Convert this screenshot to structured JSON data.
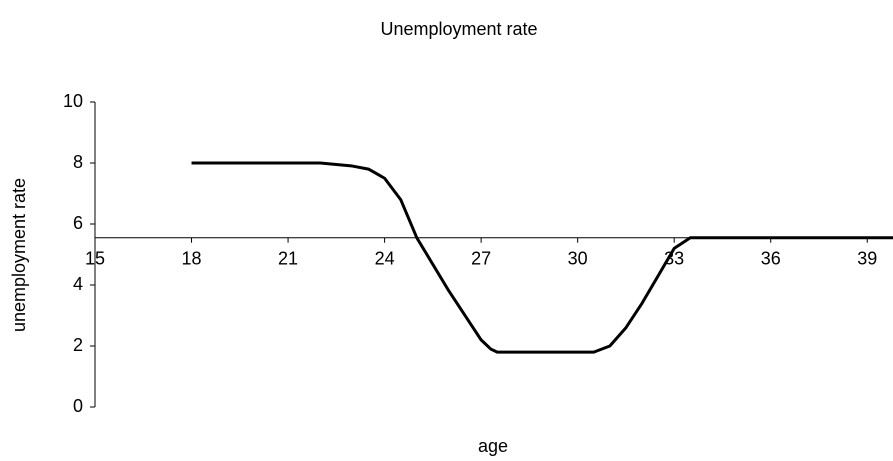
{
  "chart_data": {
    "type": "line",
    "title": "Unemployment rate",
    "x_label": "age",
    "y_label": "unemployment rate",
    "x": [
      18,
      20,
      22,
      23,
      23.5,
      24,
      24.5,
      25,
      26,
      27,
      27.3,
      27.5,
      29,
      30.5,
      31,
      31.5,
      32,
      32.5,
      33,
      33.5,
      36,
      39.8
    ],
    "series": [
      {
        "color": "#000000",
        "values": [
          8,
          8,
          8,
          7.9,
          7.8,
          7.5,
          6.8,
          5.55,
          3.8,
          2.2,
          1.9,
          1.8,
          1.8,
          1.8,
          2.0,
          2.6,
          3.4,
          4.3,
          5.2,
          5.55,
          5.55,
          5.55
        ]
      }
    ],
    "xlim": [
      15,
      39.8
    ],
    "xticks": [
      15,
      18,
      21,
      24,
      27,
      30,
      33,
      36,
      39
    ],
    "ylim": [
      0,
      10
    ],
    "yticks": [
      0,
      2,
      4,
      6,
      8,
      10
    ],
    "x_axis_crossing": 5.55,
    "grid": false
  }
}
